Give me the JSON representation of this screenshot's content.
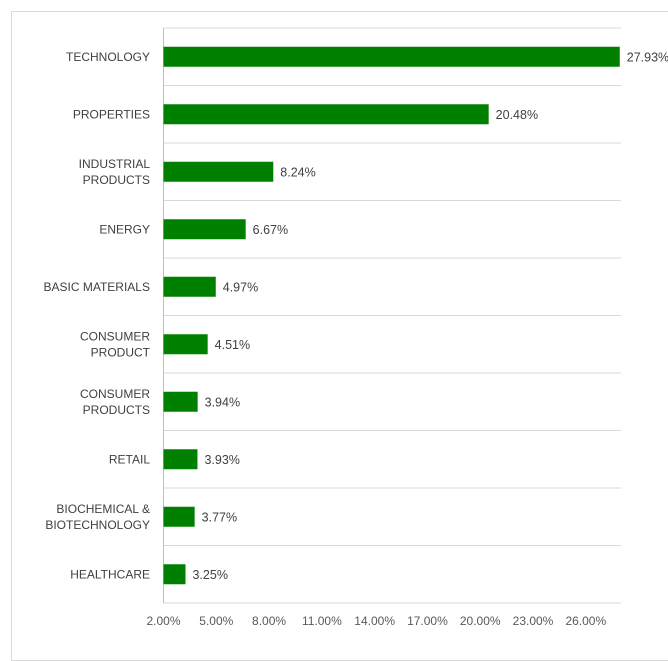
{
  "chart_data": {
    "type": "bar",
    "orientation": "horizontal",
    "categories": [
      "TECHNOLOGY",
      "PROPERTIES",
      "INDUSTRIAL PRODUCTS",
      "ENERGY",
      "BASIC MATERIALS",
      "CONSUMER PRODUCT",
      "CONSUMER PRODUCTS",
      "RETAIL",
      "BIOCHEMICAL & BIOTECHNOLOGY",
      "HEALTHCARE"
    ],
    "category_lines": [
      [
        "TECHNOLOGY"
      ],
      [
        "PROPERTIES"
      ],
      [
        "INDUSTRIAL",
        "PRODUCTS"
      ],
      [
        "ENERGY"
      ],
      [
        "BASIC MATERIALS"
      ],
      [
        "CONSUMER",
        "PRODUCT"
      ],
      [
        "CONSUMER",
        "PRODUCTS"
      ],
      [
        "RETAIL"
      ],
      [
        "BIOCHEMICAL &",
        "BIOTECHNOLOGY"
      ],
      [
        "HEALTHCARE"
      ]
    ],
    "values": [
      27.93,
      20.48,
      8.24,
      6.67,
      4.97,
      4.51,
      3.94,
      3.93,
      3.77,
      3.25
    ],
    "value_labels": [
      "27.93%",
      "20.48%",
      "8.24%",
      "6.67%",
      "4.97%",
      "4.51%",
      "3.94%",
      "3.93%",
      "3.77%",
      "3.25%"
    ],
    "x_ticks": [
      2,
      5,
      8,
      11,
      14,
      17,
      20,
      23,
      26
    ],
    "x_tick_labels": [
      "2.00%",
      "5.00%",
      "8.00%",
      "11.00%",
      "14.00%",
      "17.00%",
      "20.00%",
      "23.00%",
      "26.00%"
    ],
    "xlim": [
      2,
      28
    ],
    "title": "",
    "xlabel": "",
    "ylabel": "",
    "grid": "horizontal",
    "legend": "none",
    "bar_color": "#008000",
    "grid_color": "#d9d9d9"
  }
}
